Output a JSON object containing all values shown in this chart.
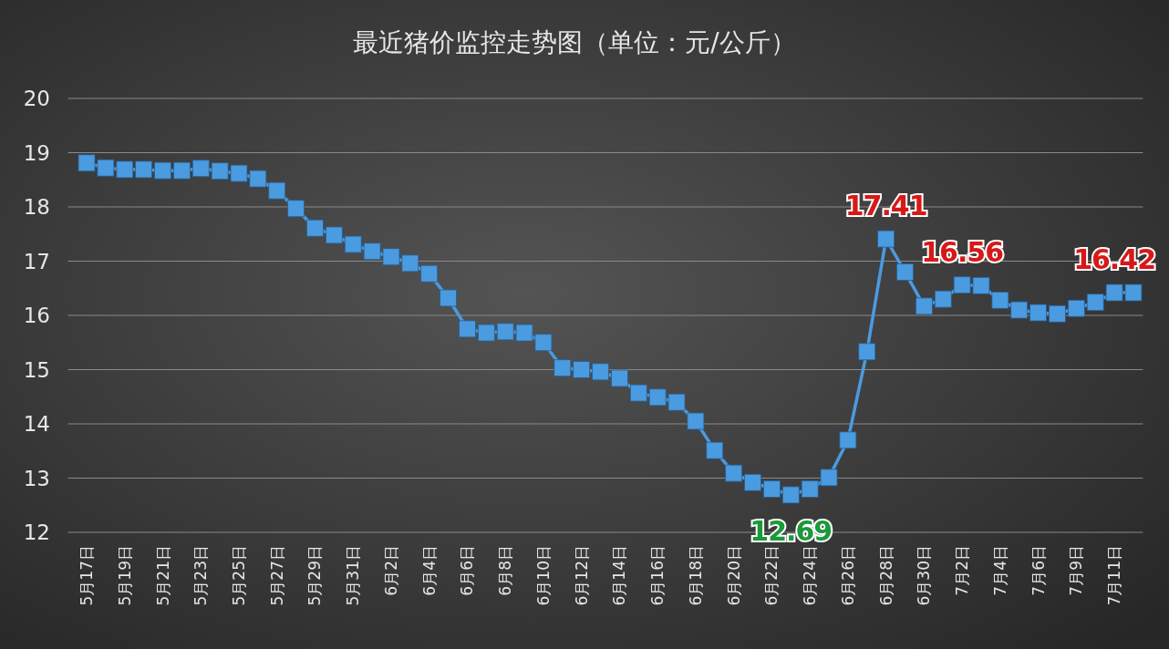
{
  "chart_data": {
    "type": "line",
    "title": "最近猪价监控走势图（单位：元/公斤）",
    "categories": [
      "5月17日",
      null,
      "5月19日",
      null,
      "5月21日",
      null,
      "5月23日",
      null,
      "5月25日",
      null,
      "5月27日",
      null,
      "5月29日",
      null,
      "5月31日",
      null,
      "6月2日",
      null,
      "6月4日",
      null,
      "6月6日",
      null,
      "6月8日",
      null,
      "6月10日",
      null,
      "6月12日",
      null,
      "6月14日",
      null,
      "6月16日",
      null,
      "6月18日",
      null,
      "6月20日",
      null,
      "6月22日",
      null,
      "6月24日",
      null,
      "6月26日",
      null,
      "6月28日",
      null,
      "6月30日",
      null,
      "7月2日",
      null,
      "7月4日",
      null,
      "7月6日",
      null,
      "7月9日",
      null,
      "7月11日",
      null
    ],
    "series": [
      {
        "color": "#4a9be0",
        "values": [
          18.81,
          18.72,
          18.69,
          18.69,
          18.67,
          18.67,
          18.71,
          18.66,
          18.62,
          18.52,
          18.3,
          17.97,
          17.61,
          17.48,
          17.31,
          17.18,
          17.08,
          16.96,
          16.77,
          16.32,
          15.75,
          15.68,
          15.7,
          15.68,
          15.5,
          15.03,
          15.0,
          14.96,
          14.84,
          14.57,
          14.49,
          14.4,
          14.05,
          13.51,
          13.09,
          12.92,
          12.8,
          12.69,
          12.8,
          13.01,
          13.7,
          15.33,
          17.41,
          16.8,
          16.17,
          16.3,
          16.56,
          16.55,
          16.28,
          16.1,
          16.05,
          16.03,
          16.13,
          16.24,
          16.42,
          16.42
        ],
        "value_labels": [
          null,
          null,
          null,
          null,
          null,
          null,
          null,
          null,
          null,
          null,
          null,
          null,
          null,
          null,
          null,
          null,
          null,
          null,
          null,
          null,
          null,
          null,
          null,
          null,
          null,
          null,
          null,
          null,
          null,
          null,
          null,
          null,
          null,
          null,
          null,
          null,
          null,
          "12.69",
          null,
          null,
          null,
          null,
          "17.41",
          null,
          null,
          null,
          "16.56",
          null,
          null,
          null,
          null,
          null,
          null,
          null,
          "16.42",
          null
        ]
      }
    ],
    "ylim": [
      12,
      20
    ],
    "yticks": [
      12,
      13,
      14,
      15,
      16,
      17,
      18,
      19,
      20
    ],
    "grid": "y",
    "marker": "square",
    "line_style": "solid"
  }
}
